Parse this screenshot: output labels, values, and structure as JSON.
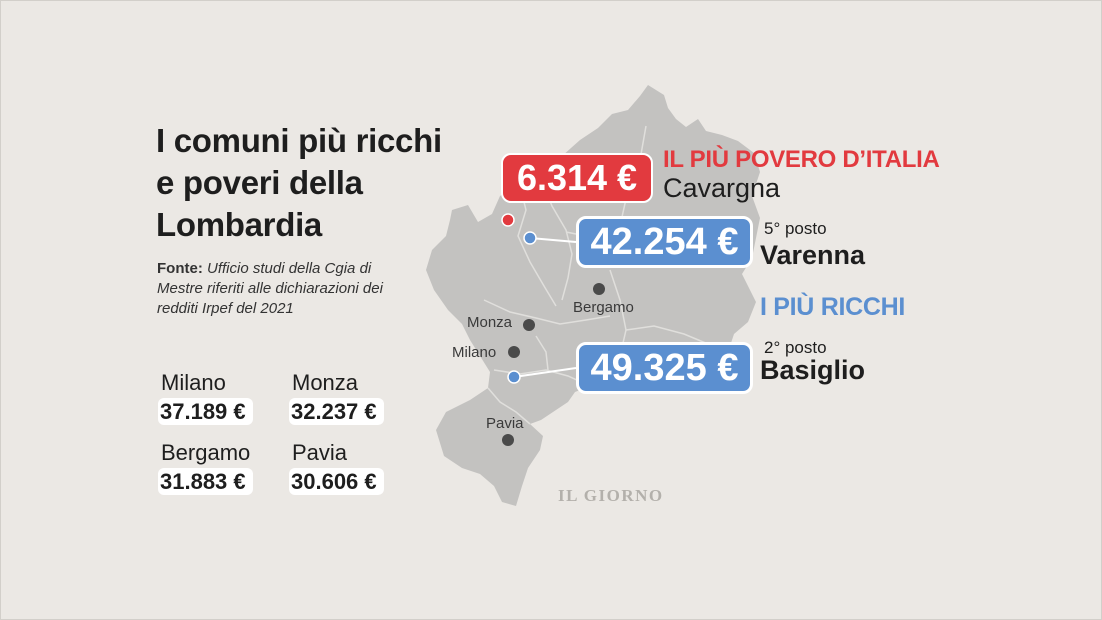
{
  "title": "I comuni più ricchi e poveri della Lombardia",
  "source": {
    "label": "Fonte:",
    "text": "Ufficio studi della Cgia di Mestre  riferiti alle dichiarazioni dei redditi Irpef del 2021"
  },
  "cities": [
    {
      "name": "Milano",
      "value": "37.189 €"
    },
    {
      "name": "Monza",
      "value": "32.237 €"
    },
    {
      "name": "Bergamo",
      "value": "31.883 €"
    },
    {
      "name": "Pavia",
      "value": "30.606 €"
    }
  ],
  "map": {
    "labels": {
      "bergamo": "Bergamo",
      "monza": "Monza",
      "milano": "Milano",
      "pavia": "Pavia"
    },
    "colors": {
      "region": "#c3c2c0",
      "border": "#e0dfdc",
      "poorest": "#e23a3f",
      "richest": "#5b8fd0",
      "city_dot": "#4a4a4a"
    }
  },
  "poorest": {
    "heading": "IL PIÙ POVERO D’ITALIA",
    "town": "Cavargna",
    "value": "6.314 €"
  },
  "richest": {
    "heading": "I PIÙ RICCHI",
    "items": [
      {
        "rank": "5° posto",
        "town": "Varenna",
        "value": "42.254 €"
      },
      {
        "rank": "2° posto",
        "town": "Basiglio",
        "value": "49.325 €"
      }
    ]
  },
  "watermark": "IL GIORNO"
}
